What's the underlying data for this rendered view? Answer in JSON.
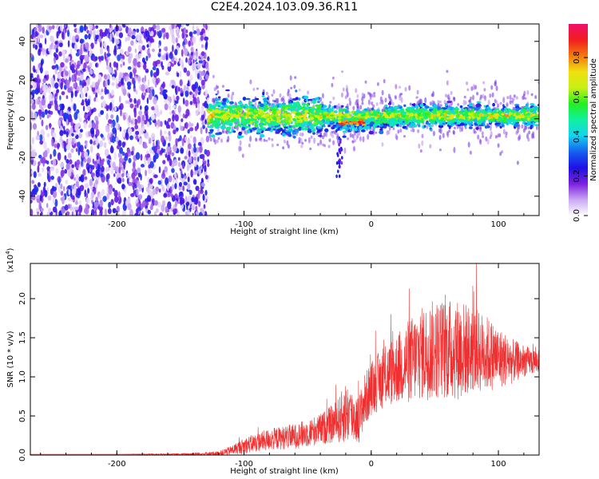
{
  "title": "C2E4.2024.103.09.36.R11",
  "chart_data": [
    {
      "type": "heatmap",
      "xlabel": "Height of straight line (km)",
      "ylabel": "Frequency (Hz)",
      "xlim": [
        -268,
        132
      ],
      "ylim": [
        -50,
        49
      ],
      "xticks": [
        -200,
        -100,
        0,
        100
      ],
      "yticks": [
        40,
        20,
        0,
        -20,
        -40
      ],
      "colorbar": {
        "label": "Normalized spectral amplitude",
        "range": [
          0,
          0.97
        ],
        "ticks": [
          "0.0",
          "0.2",
          "0.4",
          "0.6",
          "0.8"
        ],
        "colormap": [
          "#ffffff",
          "#c9a6f2",
          "#7a1fe0",
          "#1f10e6",
          "#1560f0",
          "#12d5f0",
          "#11f0a0",
          "#22f020",
          "#c8f015",
          "#f0e010",
          "#f57a10",
          "#f01e1e",
          "#f0106a"
        ]
      },
      "regions": [
        {
          "name": "noise",
          "x_range": [
            -268,
            -128
          ],
          "freq_range": [
            -50,
            49
          ],
          "amplitude_range": [
            0.0,
            0.3
          ]
        },
        {
          "name": "signal",
          "x_range": [
            -128,
            132
          ],
          "center_freq": 1.5,
          "amplitude_range": [
            0.1,
            0.9
          ],
          "peak_x": -10,
          "peak_freq": -2
        }
      ]
    },
    {
      "type": "line",
      "xlabel": "Height of straight line (km)",
      "ylabel": "SNR (10 * v/v)",
      "y_scale_label": "(x10",
      "y_scale_exp": "4",
      "xlim": [
        -268,
        132
      ],
      "ylim": [
        0,
        2.45
      ],
      "xticks": [
        -200,
        -100,
        0,
        100
      ],
      "yticks": [
        "0.0",
        "0.5",
        "1.0",
        "1.5",
        "2.0"
      ],
      "color": "#f03030",
      "series": [
        {
          "x": [
            -268,
            -200,
            -150,
            -120,
            -110,
            -100,
            -90,
            -80,
            -70,
            -60,
            -50,
            -40,
            -30,
            -25,
            -20,
            -15,
            -10,
            -5,
            0,
            10,
            20,
            30,
            40,
            50,
            60,
            70,
            80,
            90,
            100,
            110,
            120,
            132
          ],
          "y": [
            0.01,
            0.01,
            0.01,
            0.02,
            0.06,
            0.12,
            0.16,
            0.2,
            0.22,
            0.24,
            0.28,
            0.33,
            0.4,
            0.45,
            0.55,
            0.5,
            0.45,
            0.7,
            0.85,
            1.0,
            1.1,
            1.2,
            1.3,
            1.35,
            1.35,
            1.35,
            1.35,
            1.3,
            1.25,
            1.2,
            1.2,
            1.2
          ],
          "spread": [
            0.0,
            0.0,
            0.01,
            0.03,
            0.06,
            0.1,
            0.12,
            0.14,
            0.15,
            0.16,
            0.18,
            0.2,
            0.25,
            0.3,
            0.4,
            0.35,
            0.3,
            0.35,
            0.35,
            0.4,
            0.45,
            0.55,
            0.6,
            0.65,
            0.65,
            0.65,
            0.55,
            0.5,
            0.4,
            0.3,
            0.2,
            0.15
          ]
        }
      ]
    }
  ]
}
